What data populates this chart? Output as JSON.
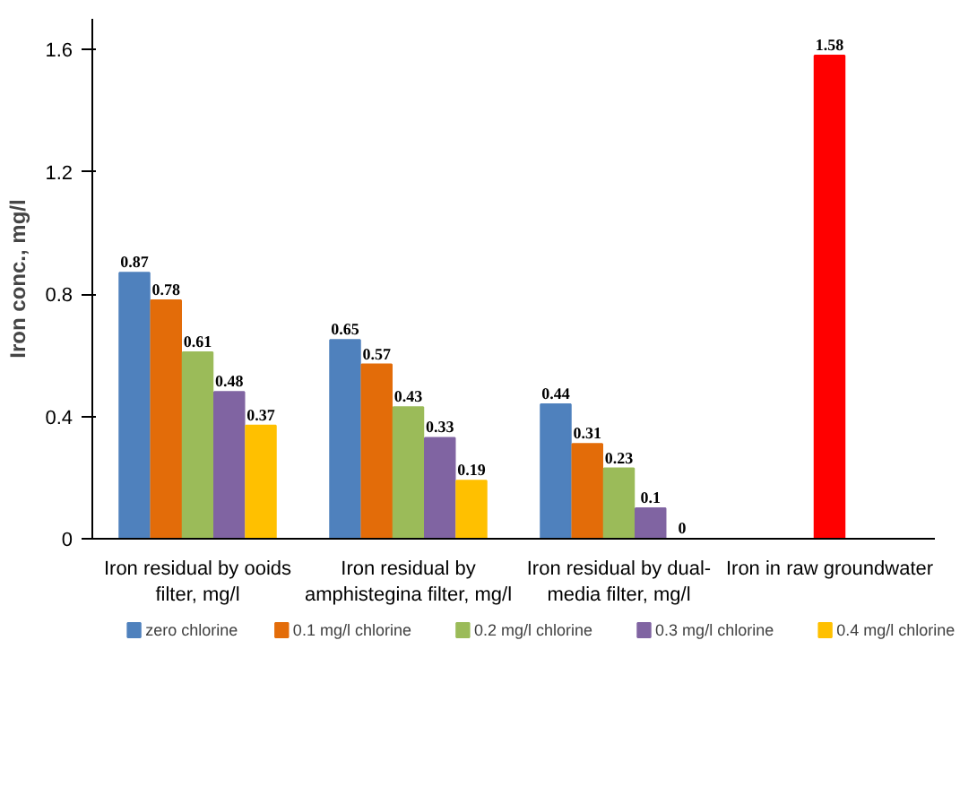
{
  "chart_data": {
    "type": "bar",
    "ylabel": "Iron conc., mg/l",
    "categories": [
      "Iron residual by ooids filter, mg/l",
      "Iron residual by amphistegina filter, mg/l",
      "Iron residual by dual-media filter, mg/l",
      "Iron in raw groundwater"
    ],
    "series": [
      {
        "name": "zero chlorine",
        "color": "#4f81bd",
        "values": [
          0.87,
          0.65,
          0.44,
          null
        ]
      },
      {
        "name": "0.1 mg/l chlorine",
        "color": "#e36c09",
        "values": [
          0.78,
          0.57,
          0.31,
          null
        ]
      },
      {
        "name": "0.2 mg/l chlorine",
        "color": "#9bbb59",
        "values": [
          0.61,
          0.43,
          0.23,
          null
        ]
      },
      {
        "name": "0.3 mg/l chlorine",
        "color": "#8064a2",
        "values": [
          0.48,
          0.33,
          0.1,
          null
        ]
      },
      {
        "name": "0.4 mg/l chlorine",
        "color": "#ffc000",
        "values": [
          0.37,
          0.19,
          0,
          null
        ]
      },
      {
        "color": "#ff0000",
        "values": [
          null,
          null,
          null,
          1.58
        ]
      }
    ],
    "ylim": [
      0,
      1.7
    ],
    "yticks": [
      0,
      0.4,
      0.8,
      1.2,
      1.6
    ],
    "grid": false,
    "legend": "bottom",
    "data_labels": true
  }
}
